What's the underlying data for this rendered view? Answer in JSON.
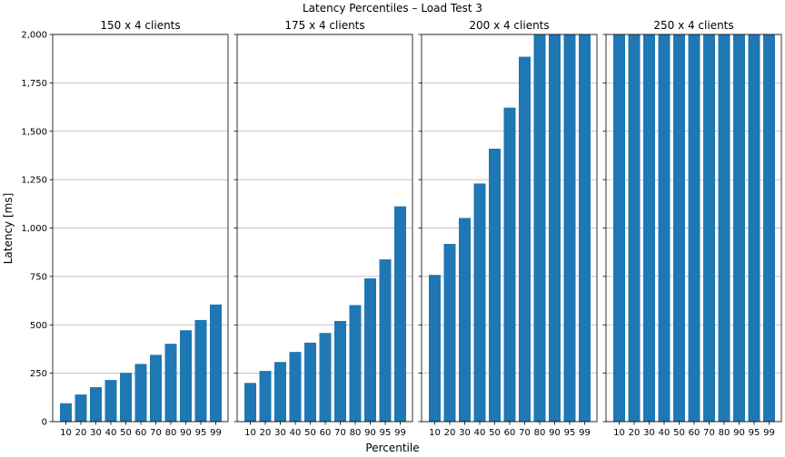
{
  "figure": {
    "title": "Latency Percentiles – Load Test 3",
    "xlabel": "Percentile",
    "ylabel": "Latency [ms]"
  },
  "chart_data": {
    "type": "bar",
    "categories": [
      "10",
      "20",
      "30",
      "40",
      "50",
      "60",
      "70",
      "80",
      "90",
      "95",
      "99"
    ],
    "ylim": [
      0,
      2000
    ],
    "yticks": [
      0,
      250,
      500,
      750,
      1000,
      1250,
      1500,
      1750,
      2000
    ],
    "ytick_labels": [
      "0",
      "250",
      "500",
      "750",
      "1,000",
      "1,250",
      "1,500",
      "1,750",
      "2,000"
    ],
    "grid": "y",
    "bar_color": "#1f77b4",
    "panels": [
      {
        "title": "150 x 4 clients",
        "values": [
          95,
          140,
          178,
          215,
          252,
          298,
          345,
          402,
          472,
          525,
          605
        ]
      },
      {
        "title": "175 x 4 clients",
        "values": [
          200,
          262,
          308,
          360,
          408,
          458,
          520,
          602,
          740,
          838,
          1112
        ]
      },
      {
        "title": "200 x 4 clients",
        "values": [
          758,
          918,
          1052,
          1230,
          1410,
          1622,
          1885,
          2000,
          2000,
          2000,
          2000
        ]
      },
      {
        "title": "250 x 4 clients",
        "values": [
          2000,
          2000,
          2000,
          2000,
          2000,
          2000,
          2000,
          2000,
          2000,
          2000,
          2000
        ]
      }
    ]
  }
}
